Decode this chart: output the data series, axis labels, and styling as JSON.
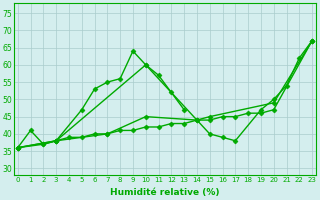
{
  "x_labels": [
    0,
    1,
    2,
    3,
    4,
    5,
    6,
    7,
    8,
    9,
    10,
    11,
    12,
    13,
    14,
    15,
    16,
    17,
    18,
    19,
    20,
    21,
    22,
    23
  ],
  "line1_x": [
    0,
    1,
    2,
    3,
    5,
    6,
    7,
    8,
    9,
    10,
    11,
    12,
    13
  ],
  "line1_y": [
    36,
    41,
    37,
    38,
    47,
    53,
    55,
    56,
    64,
    60,
    57,
    52,
    47
  ],
  "line2_x": [
    0,
    2,
    3,
    10,
    14,
    15,
    16,
    17,
    19,
    20,
    21,
    22,
    23
  ],
  "line2_y": [
    36,
    37,
    38,
    60,
    44,
    40,
    39,
    38,
    47,
    50,
    54,
    62,
    67
  ],
  "line3_x": [
    0,
    3,
    7,
    10,
    14,
    15,
    20,
    23
  ],
  "line3_y": [
    36,
    38,
    40,
    45,
    44,
    45,
    49,
    67
  ],
  "line4_x": [
    0,
    3,
    4,
    5,
    6,
    7,
    8,
    9,
    10,
    11,
    12,
    13,
    14,
    15,
    16,
    17,
    18,
    19,
    20,
    23
  ],
  "line4_y": [
    36,
    38,
    39,
    39,
    40,
    40,
    41,
    41,
    42,
    42,
    43,
    43,
    44,
    44,
    45,
    45,
    46,
    46,
    47,
    67
  ],
  "ylim": [
    28,
    78
  ],
  "yticks": [
    30,
    35,
    40,
    45,
    50,
    55,
    60,
    65,
    70,
    75
  ],
  "xlim": [
    -0.3,
    23.3
  ],
  "color": "#00aa00",
  "bg_color": "#d4eeee",
  "grid_color": "#aacccc",
  "xlabel": "Humidité relative (%)",
  "marker": "D",
  "markersize": 2.5,
  "linewidth": 1.0
}
